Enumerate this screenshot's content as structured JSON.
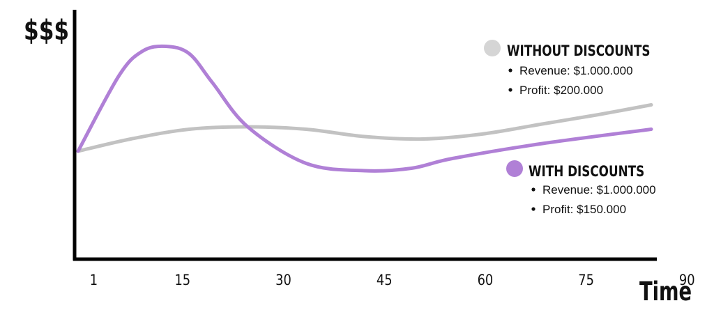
{
  "chart_data": {
    "type": "line",
    "ylabel": "$$$",
    "xlabel": "Time",
    "xticks": [
      1,
      15,
      30,
      45,
      60,
      75,
      90
    ],
    "xlim": [
      1,
      99
    ],
    "ylim": [
      0,
      100
    ],
    "grid": false,
    "legend_position": "right",
    "series": [
      {
        "name": "WITHOUT DISCOUNTS",
        "color": "#c2c2c2",
        "x": [
          1,
          10,
          20,
          30,
          40,
          50,
          60,
          70,
          80,
          90,
          99
        ],
        "y": [
          42,
          47,
          51,
          52,
          51,
          48,
          47,
          49,
          53,
          57,
          61
        ],
        "notes": [
          "Revenue: $1.000.000",
          "Profit: $200.000"
        ]
      },
      {
        "name": "WITH DISCOUNTS",
        "color": "#b080d6",
        "x": [
          1,
          8,
          12,
          16,
          20,
          24,
          30,
          40,
          50,
          58,
          65,
          80,
          99
        ],
        "y": [
          42,
          73,
          83,
          85,
          82,
          70,
          52,
          37,
          34,
          35,
          39,
          45,
          51
        ],
        "notes": [
          "Revenue: $1.000.000",
          "Profit: $150.000"
        ]
      }
    ]
  }
}
